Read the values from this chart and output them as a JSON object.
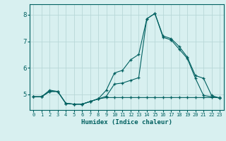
{
  "xlabel": "Humidex (Indice chaleur)",
  "x_values": [
    0,
    1,
    2,
    3,
    4,
    5,
    6,
    7,
    8,
    9,
    10,
    11,
    12,
    13,
    14,
    15,
    16,
    17,
    18,
    19,
    20,
    21,
    22,
    23
  ],
  "line1": [
    4.9,
    4.9,
    5.15,
    5.1,
    4.65,
    4.62,
    4.62,
    4.72,
    4.82,
    5.15,
    5.8,
    5.9,
    6.3,
    6.5,
    7.85,
    8.05,
    7.15,
    7.05,
    6.7,
    6.35,
    5.6,
    4.95,
    4.9,
    4.85
  ],
  "line2": [
    4.9,
    4.9,
    5.1,
    5.1,
    4.65,
    4.62,
    4.62,
    4.72,
    4.82,
    4.92,
    5.38,
    5.42,
    5.52,
    5.62,
    7.85,
    8.05,
    7.2,
    7.1,
    6.8,
    6.4,
    5.7,
    5.6,
    4.95,
    4.85
  ],
  "line3": [
    4.9,
    4.9,
    5.1,
    5.1,
    4.65,
    4.62,
    4.62,
    4.72,
    4.82,
    4.87,
    4.87,
    4.87,
    4.87,
    4.87,
    4.87,
    4.87,
    4.87,
    4.87,
    4.87,
    4.87,
    4.87,
    4.87,
    4.87,
    4.87
  ],
  "line_color": "#006060",
  "bg_color": "#d8f0f0",
  "grid_color": "#b8d8d8",
  "ylim": [
    4.4,
    8.4
  ],
  "yticks": [
    5,
    6,
    7,
    8
  ],
  "xlim": [
    -0.5,
    23.5
  ]
}
